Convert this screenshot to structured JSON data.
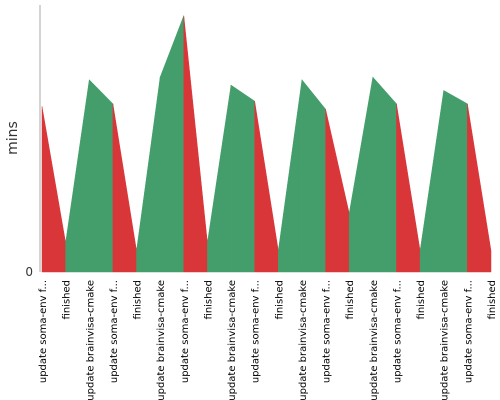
{
  "chart_data": {
    "type": "area",
    "title": "",
    "xlabel": "",
    "ylabel": "mins",
    "ylim": [
      0,
      100
    ],
    "yticks": [
      "0"
    ],
    "grid": false,
    "categories": [
      "update soma-env f...",
      "finished",
      "update brainvisa-cmake",
      "update soma-env f...",
      "finished",
      "update brainvisa-cmake",
      "update soma-env f...",
      "finished",
      "update brainvisa-cmake",
      "update soma-env f...",
      "finished",
      "update brainvisa-cmake",
      "update soma-env f...",
      "finished",
      "update brainvisa-cmake",
      "update soma-env f...",
      "finished",
      "update brainvisa-cmake",
      "update soma-env f...",
      "finished"
    ],
    "values": [
      62,
      11,
      72,
      63,
      8,
      73,
      96,
      11,
      70,
      64,
      8,
      72,
      61,
      22,
      73,
      63,
      8,
      68,
      63,
      8
    ],
    "point_status": [
      "success",
      "failure",
      "success",
      "success",
      "failure",
      "success",
      "success",
      "failure",
      "success",
      "success",
      "failure",
      "success",
      "success",
      "failure",
      "success",
      "success",
      "failure",
      "success",
      "success",
      "failure"
    ],
    "colors": {
      "success": "#449e6b",
      "failure": "#d93639",
      "axis": "#aaaaaa"
    }
  }
}
